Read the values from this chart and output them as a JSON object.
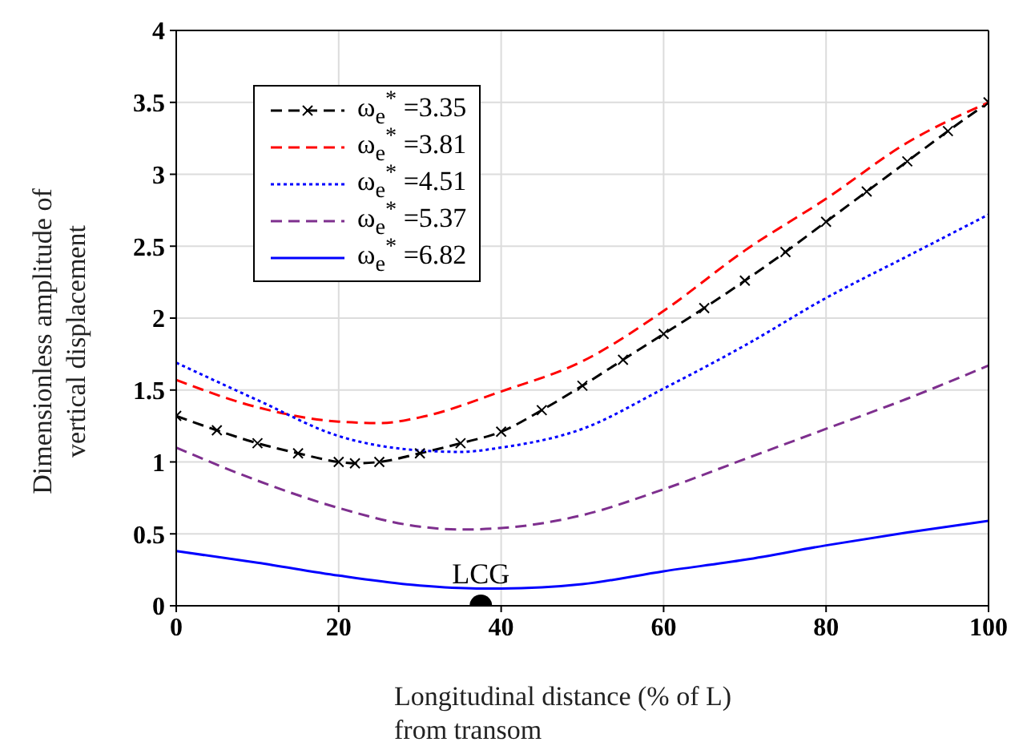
{
  "chart_data": {
    "type": "line",
    "xlabel": "Longitudinal distance (% of L)\nfrom transom",
    "ylabel": "Dimensionless amplitude of\nvertical displacement",
    "xlim": [
      0,
      100
    ],
    "xticks": [
      0,
      20,
      40,
      60,
      80,
      100
    ],
    "ylim": [
      0,
      4
    ],
    "yticks": [
      0,
      0.5,
      1,
      1.5,
      2,
      2.5,
      3,
      3.5,
      4
    ],
    "grid": true,
    "legend": "top left",
    "series": [
      {
        "name": "ω$_{e}$$^{*}$ =3.35",
        "color": "#000000",
        "line_style": "dashed",
        "marker": "cross",
        "x": [
          0,
          5,
          10,
          15,
          20,
          22,
          25,
          30,
          35,
          40,
          45,
          50,
          55,
          60,
          65,
          70,
          75,
          80,
          85,
          90,
          95,
          100
        ],
        "values": [
          1.32,
          1.22,
          1.13,
          1.06,
          1.0,
          0.99,
          1.0,
          1.06,
          1.13,
          1.21,
          1.36,
          1.53,
          1.71,
          1.89,
          2.07,
          2.26,
          2.46,
          2.67,
          2.88,
          3.09,
          3.3,
          3.5
        ]
      },
      {
        "name": "ω$_{e}$$^{*}$ =3.81",
        "color": "#ff0000",
        "line_style": "dashed",
        "marker": "none",
        "x": [
          0,
          10,
          20,
          25,
          30,
          40,
          50,
          60,
          70,
          80,
          90,
          100
        ],
        "values": [
          1.57,
          1.38,
          1.28,
          1.27,
          1.31,
          1.49,
          1.7,
          2.05,
          2.47,
          2.83,
          3.22,
          3.5
        ]
      },
      {
        "name": "ω$_{e}$$^{*}$ =4.51",
        "color": "#0000ff",
        "line_style": "dotted",
        "marker": "none",
        "x": [
          0,
          10,
          20,
          30,
          35,
          40,
          50,
          60,
          70,
          80,
          90,
          100
        ],
        "values": [
          1.69,
          1.43,
          1.18,
          1.08,
          1.07,
          1.1,
          1.23,
          1.51,
          1.81,
          2.14,
          2.43,
          2.72
        ]
      },
      {
        "name": "ω$_{e}$$^{*}$ =5.37",
        "color": "#7e2f8e",
        "line_style": "dashed",
        "marker": "none",
        "x": [
          0,
          10,
          20,
          30,
          35,
          40,
          50,
          60,
          70,
          80,
          90,
          100
        ],
        "values": [
          1.1,
          0.87,
          0.68,
          0.55,
          0.53,
          0.54,
          0.63,
          0.81,
          1.02,
          1.23,
          1.44,
          1.67
        ]
      },
      {
        "name": "ω$_{e}$$^{*}$ =6.82",
        "color": "#0000ff",
        "line_style": "solid",
        "marker": "none",
        "x": [
          0,
          10,
          20,
          30,
          37,
          40,
          50,
          60,
          70,
          80,
          90,
          100
        ],
        "values": [
          0.38,
          0.3,
          0.21,
          0.14,
          0.12,
          0.12,
          0.15,
          0.24,
          0.32,
          0.42,
          0.51,
          0.59
        ]
      },
      {
        "type": "scatter",
        "color": "#000000",
        "marker": "circle",
        "x": [
          37.5
        ],
        "values": [
          0
        ]
      }
    ],
    "annotations": [
      {
        "text": "LCG",
        "x": 37.5,
        "y": 0
      }
    ]
  }
}
